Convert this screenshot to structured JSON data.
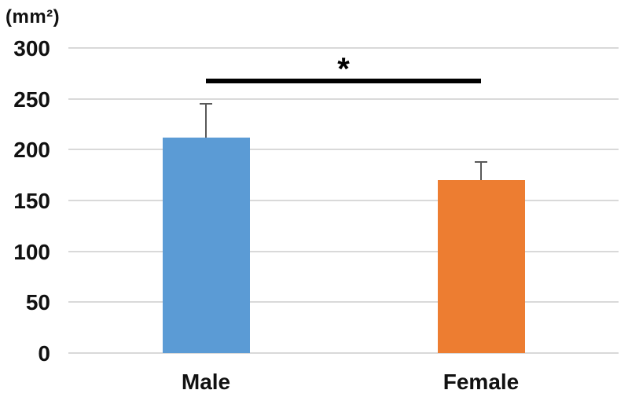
{
  "figure": {
    "unit_label": "(mm²)"
  },
  "chart_data": {
    "type": "bar",
    "title": "",
    "xlabel": "",
    "ylabel": "(mm²)",
    "categories": [
      "Male",
      "Female"
    ],
    "values": [
      212,
      170
    ],
    "errors_plus": [
      33,
      18
    ],
    "error_tops": [
      245,
      188
    ],
    "bar_colors": [
      "#5B9BD5",
      "#ED7D31"
    ],
    "error_bar_color": "#595959",
    "gridline_color": "#D9D9D9",
    "yticks": [
      0,
      50,
      100,
      150,
      200,
      250,
      300
    ],
    "ylim": [
      0,
      300
    ],
    "grid": true,
    "legend": "none",
    "annotations": {
      "significance": {
        "between": [
          "Male",
          "Female"
        ],
        "label": "*"
      }
    }
  }
}
